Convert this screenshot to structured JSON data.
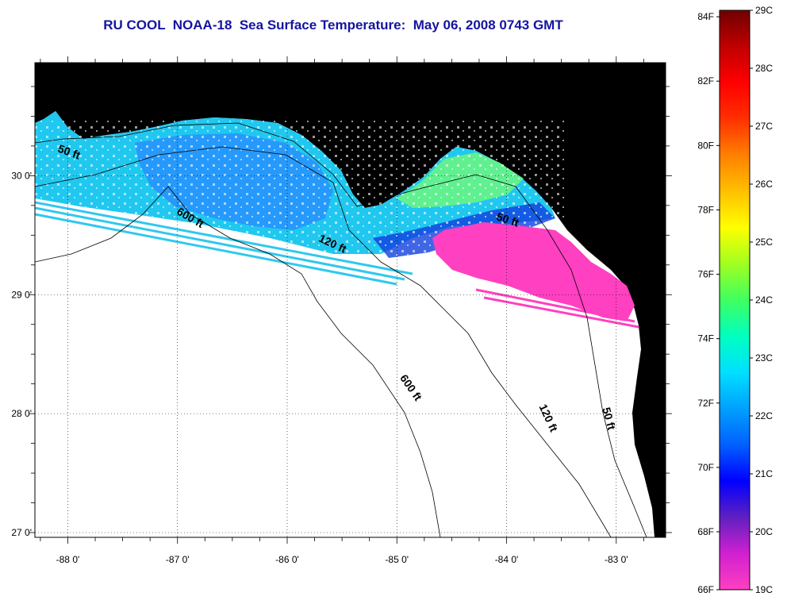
{
  "title": "RU COOL  NOAA-18  Sea Surface Temperature:  May 06, 2008 0743 GMT",
  "map": {
    "lon_range": [
      -88.3,
      -82.55
    ],
    "lat_range": [
      26.96,
      30.95
    ],
    "lon_ticks": [
      {
        "value": -88,
        "label": "-88 0'"
      },
      {
        "value": -87,
        "label": "-87 0'"
      },
      {
        "value": -86,
        "label": "-86 0'"
      },
      {
        "value": -85,
        "label": "-85 0'"
      },
      {
        "value": -84,
        "label": "-84 0'"
      },
      {
        "value": -83,
        "label": "-83 0'"
      }
    ],
    "lat_ticks": [
      {
        "value": 30,
        "label": "30 0'"
      },
      {
        "value": 29,
        "label": "29 0'"
      },
      {
        "value": 28,
        "label": "28 0'"
      },
      {
        "value": 27,
        "label": "27 0'"
      }
    ],
    "grid": "dotted",
    "land_color": "#b0b0b0",
    "missing_data_color": "#ffffff",
    "contour_labels": [
      {
        "text": "50 ft",
        "lon": -88.0,
        "lat": 30.17
      },
      {
        "text": "600 ft",
        "lon": -86.9,
        "lat": 29.62
      },
      {
        "text": "120 ft",
        "lon": -85.6,
        "lat": 29.4
      },
      {
        "text": "50 ft",
        "lon": -84.0,
        "lat": 29.6
      },
      {
        "text": "600 ft",
        "lon": -84.9,
        "lat": 28.2
      },
      {
        "text": "120 ft",
        "lon": -83.65,
        "lat": 27.95
      },
      {
        "text": "50 ft",
        "lon": -83.1,
        "lat": 27.95
      }
    ]
  },
  "colorbar": {
    "f_labels": [
      "84F",
      "82F",
      "80F",
      "78F",
      "76F",
      "74F",
      "72F",
      "70F",
      "68F",
      "66F"
    ],
    "c_labels": [
      "29C",
      "28C",
      "27C",
      "26C",
      "25C",
      "24C",
      "23C",
      "22C",
      "21C",
      "20C",
      "19C"
    ],
    "range_c": [
      19,
      29
    ],
    "colors": [
      "#ff40c0",
      "#d020d0",
      "#6020c0",
      "#0000ff",
      "#0060ff",
      "#00a0ff",
      "#00e0ff",
      "#00ffc0",
      "#40ff60",
      "#a0ff20",
      "#ffff00",
      "#ffc000",
      "#ff8000",
      "#ff3000",
      "#ff0000",
      "#c00000",
      "#700000"
    ]
  }
}
